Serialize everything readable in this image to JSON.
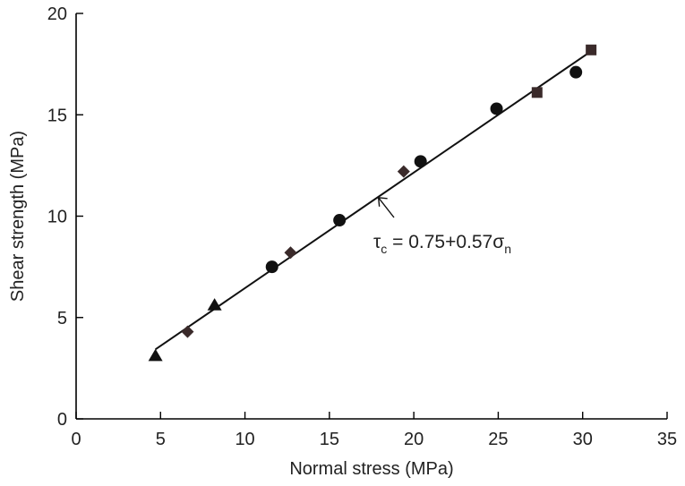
{
  "chart_data": {
    "type": "scatter",
    "xlabel": "Normal stress (MPa)",
    "ylabel": "Shear strength (MPa)",
    "xlim": [
      0,
      35
    ],
    "ylim": [
      0,
      20
    ],
    "xticks": [
      "0",
      "5",
      "10",
      "15",
      "20",
      "25",
      "30",
      "35"
    ],
    "yticks": [
      "0",
      "5",
      "10",
      "15",
      "20"
    ],
    "grid": false,
    "series": [
      {
        "marker": "triangle",
        "points": [
          [
            4.7,
            3.1
          ],
          [
            8.2,
            5.6
          ]
        ]
      },
      {
        "marker": "diamond",
        "points": [
          [
            6.6,
            4.3
          ],
          [
            12.7,
            8.2
          ],
          [
            19.4,
            12.2
          ]
        ]
      },
      {
        "marker": "circle",
        "points": [
          [
            11.6,
            7.5
          ],
          [
            15.6,
            9.8
          ],
          [
            20.4,
            12.7
          ],
          [
            24.9,
            15.3
          ],
          [
            29.6,
            17.1
          ]
        ]
      },
      {
        "marker": "square",
        "points": [
          [
            27.3,
            16.1
          ],
          [
            30.5,
            18.2
          ]
        ]
      }
    ],
    "fit_line": {
      "intercept": 0.75,
      "slope": 0.57,
      "x_range": [
        4.7,
        30.5
      ]
    },
    "annotation": {
      "symbol": "τ",
      "sub1": "c",
      "middle": " = 0.75+0.57",
      "symbol2": "σ",
      "sub2": "n",
      "arrow_target": [
        17.8,
        11.0
      ]
    }
  }
}
